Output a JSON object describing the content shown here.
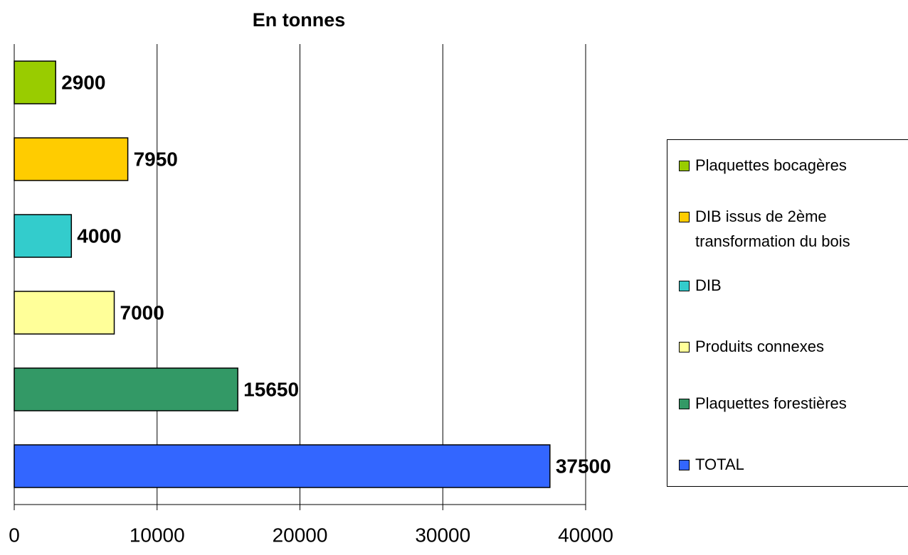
{
  "chart_data": {
    "type": "bar",
    "orientation": "horizontal",
    "title": "En tonnes",
    "series": [
      {
        "name": "Plaquettes bocagères",
        "color": "#99cc00",
        "values": [
          2900
        ]
      },
      {
        "name": "DIB issus de 2ème transformation du bois",
        "color": "#ffcc00",
        "values": [
          7950
        ]
      },
      {
        "name": "DIB",
        "color": "#33cccc",
        "values": [
          4000
        ]
      },
      {
        "name": "Produits connexes",
        "color": "#ffff99",
        "values": [
          7000
        ]
      },
      {
        "name": "Plaquettes forestières",
        "color": "#339966",
        "values": [
          15650
        ]
      },
      {
        "name": "TOTAL",
        "color": "#3366ff",
        "values": [
          37500
        ]
      }
    ],
    "xlim": [
      0,
      40000
    ],
    "xticks": [
      0,
      10000,
      20000,
      30000,
      40000
    ],
    "grid": true,
    "legend": "right"
  }
}
